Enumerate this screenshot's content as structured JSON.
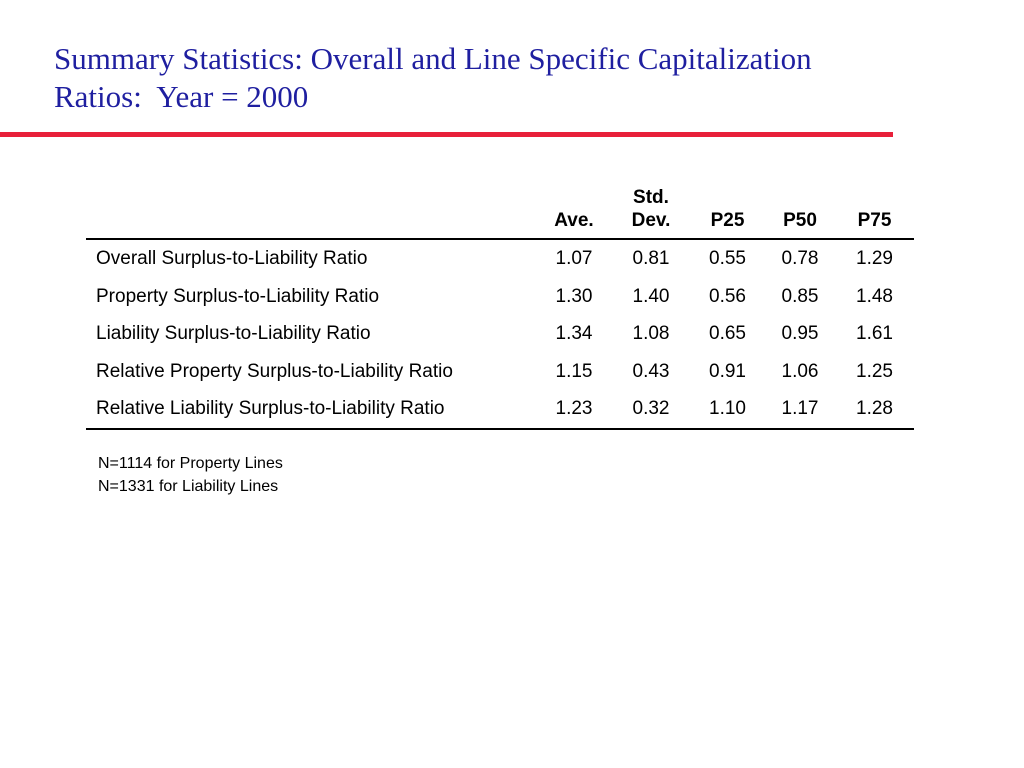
{
  "title": {
    "line1": "Summary Statistics: Overall and Line Specific Capitalization",
    "line2": "Ratios:  Year = 2000"
  },
  "table": {
    "headers": {
      "label": "",
      "ave": "Ave.",
      "std_line1": "Std.",
      "std_line2": "Dev.",
      "p25": "P25",
      "p50": "P50",
      "p75": "P75"
    },
    "rows": [
      {
        "label": "Overall Surplus-to-Liability Ratio",
        "ave": "1.07",
        "std": "0.81",
        "p25": "0.55",
        "p50": "0.78",
        "p75": "1.29"
      },
      {
        "label": "Property Surplus-to-Liability Ratio",
        "ave": "1.30",
        "std": "1.40",
        "p25": "0.56",
        "p50": "0.85",
        "p75": "1.48"
      },
      {
        "label": "Liability Surplus-to-Liability Ratio",
        "ave": "1.34",
        "std": "1.08",
        "p25": "0.65",
        "p50": "0.95",
        "p75": "1.61"
      },
      {
        "label": "Relative Property Surplus-to-Liability Ratio",
        "ave": "1.15",
        "std": "0.43",
        "p25": "0.91",
        "p50": "1.06",
        "p75": "1.25"
      },
      {
        "label": "Relative Liability Surplus-to-Liability Ratio",
        "ave": "1.23",
        "std": "0.32",
        "p25": "1.10",
        "p50": "1.17",
        "p75": "1.28"
      }
    ]
  },
  "notes": [
    "N=1114 for Property Lines",
    "N=1331 for Liability Lines"
  ],
  "colors": {
    "title": "#1f1fa0",
    "rule": "#e8203a"
  }
}
